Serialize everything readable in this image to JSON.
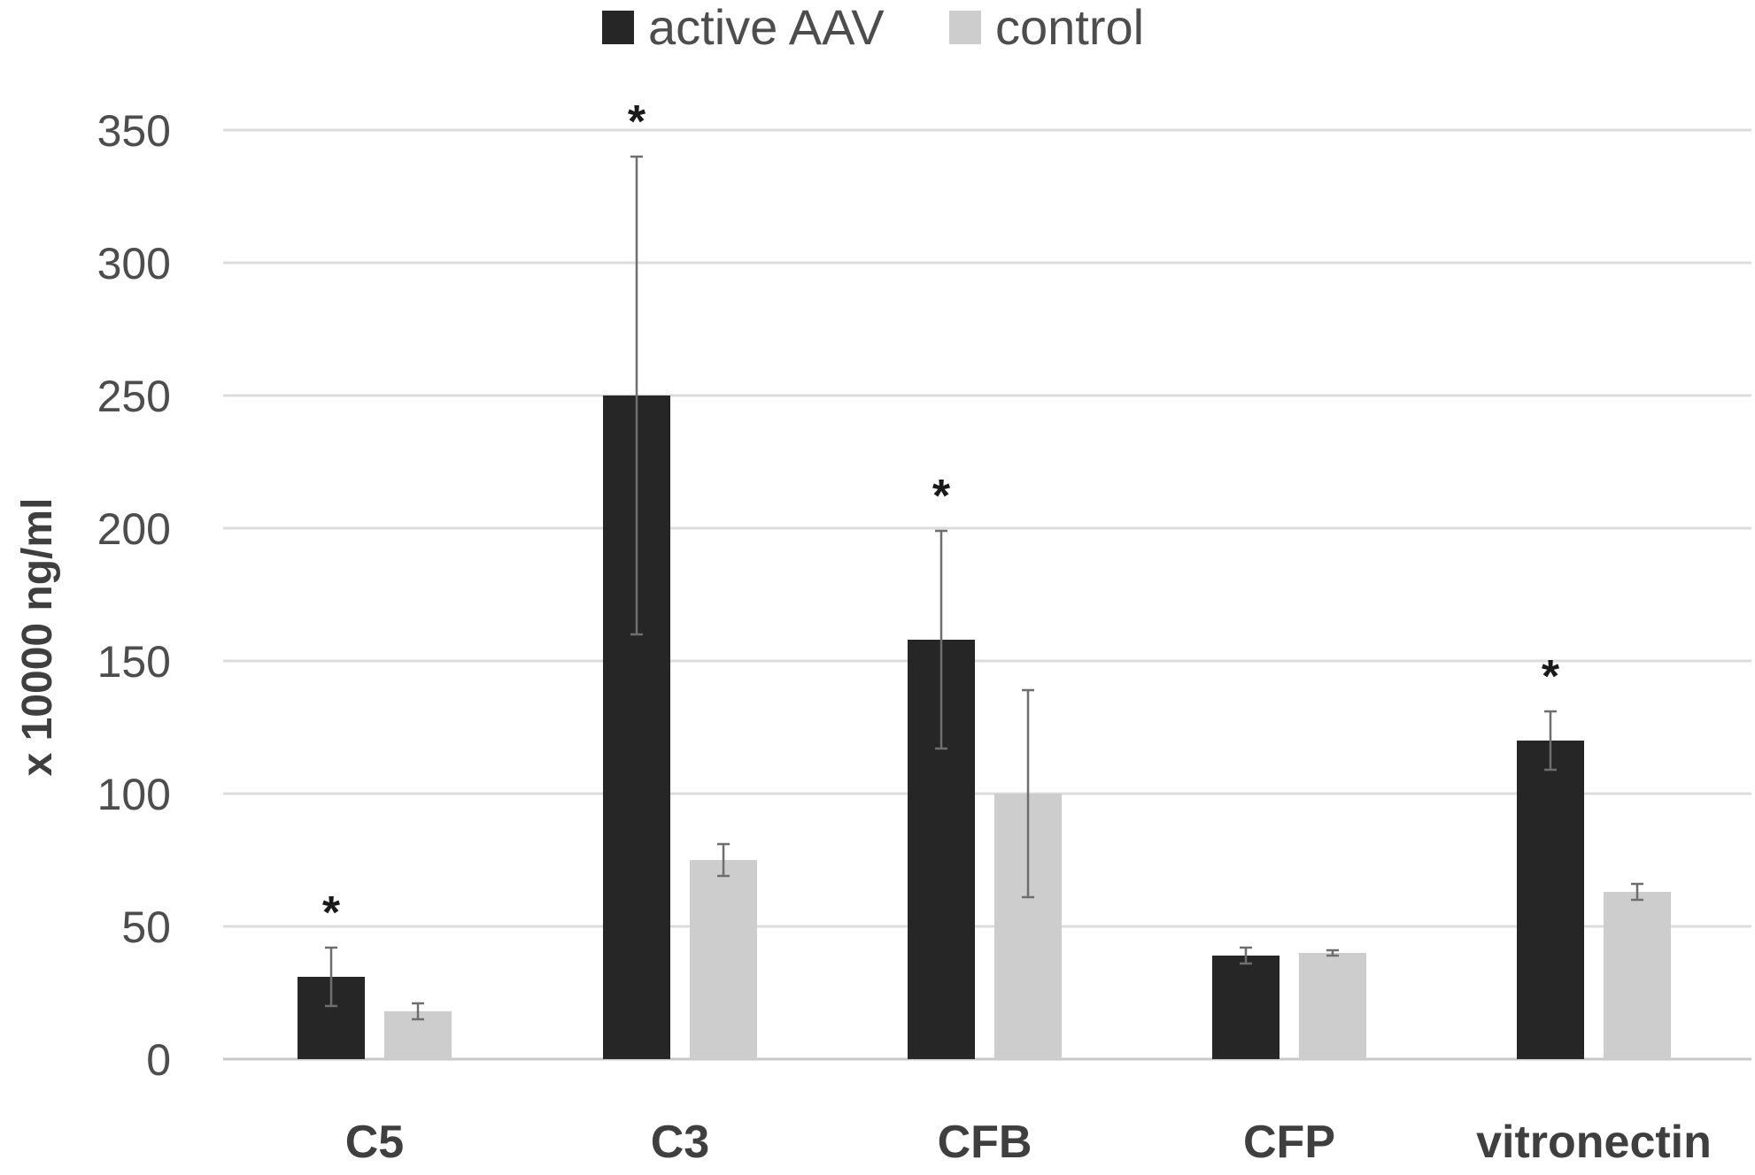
{
  "chart_data": {
    "type": "bar",
    "title": "",
    "xlabel": "",
    "ylabel": "x 10000 ng/ml",
    "ylim": [
      0,
      350
    ],
    "yticks": [
      0,
      50,
      100,
      150,
      200,
      250,
      300,
      350
    ],
    "grid": true,
    "legend_position": "top-center",
    "categories": [
      "C5",
      "C3",
      "CFB",
      "CFP",
      "vitronectin"
    ],
    "series": [
      {
        "name": "active AAV",
        "color": "#262626",
        "values": [
          31,
          250,
          158,
          39,
          120
        ],
        "errors": [
          11,
          90,
          41,
          3,
          11
        ],
        "significance": [
          "*",
          "*",
          "*",
          "",
          "*"
        ]
      },
      {
        "name": "control",
        "color": "#cdcdcd",
        "values": [
          18,
          75,
          100,
          40,
          63
        ],
        "errors": [
          3,
          6,
          39,
          1,
          3
        ],
        "significance": [
          "",
          "",
          "",
          "",
          ""
        ]
      }
    ]
  }
}
